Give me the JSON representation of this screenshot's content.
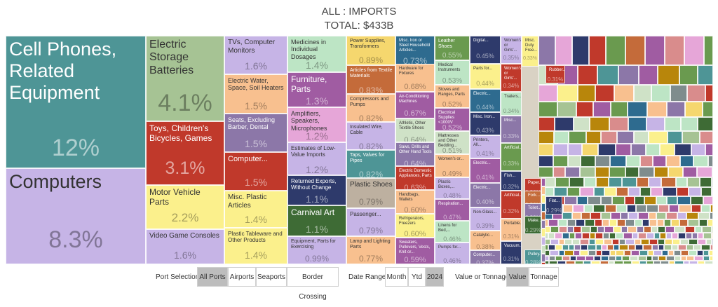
{
  "header": {
    "title": "ALL : IMPORTS",
    "total": "TOTAL: $433B"
  },
  "chart_data": {
    "type": "treemap",
    "title": "ALL : IMPORTS",
    "subtitle": "TOTAL: $433B",
    "unit": "percent of total import value",
    "items": [
      {
        "label": "Cell Phones, Related Equipment",
        "value": 12,
        "display": "12%",
        "color": "#4e9596",
        "text": "#ffffff"
      },
      {
        "label": "Computers",
        "value": 8.3,
        "display": "8.3%",
        "color": "#c6b4e6",
        "text": "#333333"
      },
      {
        "label": "Electric Storage Batteries",
        "value": 4.1,
        "display": "4.1%",
        "color": "#a6c394",
        "text": "#333333"
      },
      {
        "label": "Toys, Children's Bicycles, Games",
        "value": 3.1,
        "display": "3.1%",
        "color": "#c0392b",
        "text": "#ffffff"
      },
      {
        "label": "Motor Vehicle Parts",
        "value": 2.2,
        "display": "2.2%",
        "color": "#fbf08c",
        "text": "#333333"
      },
      {
        "label": "Video Game Consoles",
        "value": 1.6,
        "display": "1.6%",
        "color": "#c6b4e6",
        "text": "#333333"
      },
      {
        "label": "TVs, Computer Monitors",
        "value": 1.6,
        "display": "1.6%",
        "color": "#c6b4e6",
        "text": "#333333"
      },
      {
        "label": "Electric Water, Space, Soil Heaters",
        "value": 1.5,
        "display": "1.5%",
        "color": "#f8c08f",
        "text": "#333333"
      },
      {
        "label": "Seats, Excluding Barber, Dental",
        "value": 1.5,
        "display": "1.5%",
        "color": "#8c77a8",
        "text": "#ffffff"
      },
      {
        "label": "Computer...",
        "value": 1.5,
        "display": "1.5%",
        "color": "#c0392b",
        "text": "#ffffff"
      },
      {
        "label": "Misc. Plastic Articles",
        "value": 1.4,
        "display": "1.4%",
        "color": "#fbf08c",
        "text": "#333333"
      },
      {
        "label": "Plastic Tableware and Other Products",
        "value": 1.4,
        "display": "1.4%",
        "color": "#fbf08c",
        "text": "#333333"
      },
      {
        "label": "Medicines in Individual Dosages",
        "value": 1.4,
        "display": "1.4%",
        "color": "#bde5c5",
        "text": "#333333"
      },
      {
        "label": "Furniture, Parts",
        "value": 1.3,
        "display": "1.3%",
        "color": "#a05ca2",
        "text": "#ffffff"
      },
      {
        "label": "Amplifiers, Speakers, Microphones",
        "value": 1.2,
        "display": "1.2%",
        "color": "#e6a6d8",
        "text": "#333333"
      },
      {
        "label": "Estimates of Low-Value Imports",
        "value": 1.2,
        "display": "1.2%",
        "color": "#c6b4e6",
        "text": "#333333"
      },
      {
        "label": "Returned Exports, Without Change",
        "value": 1.1,
        "display": "1.1%",
        "color": "#2e3a6b",
        "text": "#ffffff"
      },
      {
        "label": "Carnival Art",
        "value": 1.1,
        "display": "1.1%",
        "color": "#3e6b35",
        "text": "#ffffff"
      },
      {
        "label": "Equipment, Parts for Exercising",
        "value": 0.99,
        "display": "0.99%",
        "color": "#c6b4e6",
        "text": "#333333"
      },
      {
        "label": "Power Supplies, Transformers",
        "value": 0.89,
        "display": "0.89%",
        "color": "#f5d76e",
        "text": "#333333"
      },
      {
        "label": "Articles from Textile Materials",
        "value": 0.83,
        "display": "0.83%",
        "color": "#c46b3a",
        "text": "#ffffff"
      },
      {
        "label": "Compressors and Pumps",
        "value": 0.82,
        "display": "0.82%",
        "color": "#f8c08f",
        "text": "#333333"
      },
      {
        "label": "Insulated Wire, Cable",
        "value": 0.82,
        "display": "0.82%",
        "color": "#c6b4e6",
        "text": "#333333"
      },
      {
        "label": "Taps, Valves for Pipes",
        "value": 0.82,
        "display": "0.82%",
        "color": "#4e9596",
        "text": "#ffffff"
      },
      {
        "label": "Plastic Shoes",
        "value": 0.79,
        "display": "0.79%",
        "color": "#bdb0a0",
        "text": "#333333"
      },
      {
        "label": "Passenger...",
        "value": 0.79,
        "display": "0.79%",
        "color": "#c6b4e6",
        "text": "#333333"
      },
      {
        "label": "Lamp and Lighting Parts",
        "value": 0.77,
        "display": "0.77%",
        "color": "#f8c08f",
        "text": "#333333"
      },
      {
        "label": "Misc. Iron or Steel Household Articles...",
        "value": 0.73,
        "display": "0.73%",
        "color": "#2e6b8f",
        "text": "#ffffff"
      },
      {
        "label": "Hardware for Fixtures",
        "value": 0.68,
        "display": "0.68%",
        "color": "#f8c08f",
        "text": "#333333"
      },
      {
        "label": "Air-Conditioning Machines",
        "value": 0.67,
        "display": "0.67%",
        "color": "#a05ca2",
        "text": "#ffffff"
      },
      {
        "label": "Athletic, Other Textile Shoes",
        "value": 0.64,
        "display": "0.64%",
        "color": "#cfe2c7",
        "text": "#333333"
      },
      {
        "label": "Saws, Drills and Other Hand Tools",
        "value": 0.64,
        "display": "0.64%",
        "color": "#8c77a8",
        "text": "#ffffff"
      },
      {
        "label": "Electric Domestic Appliances, Parts",
        "value": 0.63,
        "display": "0.63%",
        "color": "#c0392b",
        "text": "#ffffff"
      },
      {
        "label": "Handbags, Wallets",
        "value": 0.6,
        "display": "0.60%",
        "color": "#f8c08f",
        "text": "#333333"
      },
      {
        "label": "Refrigerators, Freezers",
        "value": 0.6,
        "display": "0.60%",
        "color": "#fbf08c",
        "text": "#333333"
      },
      {
        "label": "Sweaters, Pullovers, Vests, Knit or...",
        "value": 0.59,
        "display": "0.59%",
        "color": "#a05ca2",
        "text": "#ffffff"
      },
      {
        "label": "Leather Shoes",
        "value": 0.55,
        "display": "0.55%",
        "color": "#6a9a4f",
        "text": "#ffffff"
      },
      {
        "label": "Medical Instruments",
        "value": 0.53,
        "display": "0.53%",
        "color": "#bde5c5",
        "text": "#333333"
      },
      {
        "label": "Stoves and Ranges, Parts",
        "value": 0.52,
        "display": "0.52%",
        "color": "#f8c08f",
        "text": "#333333"
      },
      {
        "label": "Electrical Supplies <1000V",
        "value": 0.52,
        "display": "0.52%",
        "color": "#a05ca2",
        "text": "#ffffff"
      },
      {
        "label": "Mattresses and Other Bedding...",
        "value": 0.51,
        "display": "0.51%",
        "color": "#cfe2c7",
        "text": "#333333"
      },
      {
        "label": "Women's or...",
        "value": 0.49,
        "display": "0.49%",
        "color": "#f8c08f",
        "text": "#333333"
      },
      {
        "label": "Plastic Boxes,...",
        "value": 0.48,
        "display": "0.48%",
        "color": "#c6b4e6",
        "text": "#333333"
      },
      {
        "label": "Respiration...",
        "value": 0.47,
        "display": "0.47%",
        "color": "#a05ca2",
        "text": "#ffffff"
      },
      {
        "label": "Linens for Bed,...",
        "value": 0.46,
        "display": "0.46%",
        "color": "#bde5c5",
        "text": "#333333"
      },
      {
        "label": "Pumps for...",
        "value": 0.46,
        "display": "0.46%",
        "color": "#c6b4e6",
        "text": "#333333"
      },
      {
        "label": "Digital...",
        "value": 0.45,
        "display": "0.45%",
        "color": "#2e3a6b",
        "text": "#ffffff"
      },
      {
        "label": "Parts for...",
        "value": 0.44,
        "display": "0.44%",
        "color": "#fbf08c",
        "text": "#333333"
      },
      {
        "label": "Electric...",
        "value": 0.44,
        "display": "0.44%",
        "color": "#2e6b8f",
        "text": "#ffffff"
      },
      {
        "label": "Misc. Iron...",
        "value": 0.43,
        "display": "0.43%",
        "color": "#2e3a6b",
        "text": "#ffffff"
      },
      {
        "label": "Printers, All...",
        "value": 0.41,
        "display": "0.41%",
        "color": "#c6b4e6",
        "text": "#333333"
      },
      {
        "label": "Electric...",
        "value": 0.41,
        "display": "0.41%",
        "color": "#a05ca2",
        "text": "#ffffff"
      },
      {
        "label": "Electric...",
        "value": 0.4,
        "display": "0.40%",
        "color": "#8c77a8",
        "text": "#ffffff"
      },
      {
        "label": "Non-Glass...",
        "value": 0.39,
        "display": "0.39%",
        "color": "#c6b4e6",
        "text": "#333333"
      },
      {
        "label": "Catalytic...",
        "value": 0.38,
        "display": "0.38%",
        "color": "#f8c08f",
        "text": "#333333"
      },
      {
        "label": "Computer...",
        "value": 0.37,
        "display": "0.37%",
        "color": "#8c77a8",
        "text": "#ffffff"
      },
      {
        "label": "Women's or Girls'...",
        "value": 0.35,
        "display": "0.35%",
        "color": "#c6b4e6",
        "text": "#333333"
      },
      {
        "label": "Women's or Girls'...",
        "value": 0.34,
        "display": "0.34%",
        "color": "#c0392b",
        "text": "#ffffff"
      },
      {
        "label": "Trailers...",
        "value": 0.34,
        "display": "0.34%",
        "color": "#bde5c5",
        "text": "#333333"
      },
      {
        "label": "Misc...",
        "value": 0.33,
        "display": "0.33%",
        "color": "#8c77a8",
        "text": "#ffffff"
      },
      {
        "label": "Artificial...",
        "value": 0.33,
        "display": "0.33%",
        "color": "#6a9a4f",
        "text": "#ffffff"
      },
      {
        "label": "Fish...",
        "value": 0.32,
        "display": "0.32%",
        "color": "#2e3a6b",
        "text": "#ffffff"
      },
      {
        "label": "Artificial...",
        "value": 0.32,
        "display": "0.32%",
        "color": "#c0392b",
        "text": "#ffffff"
      },
      {
        "label": "Portable...",
        "value": 0.31,
        "display": "0.31%",
        "color": "#f8c08f",
        "text": "#333333"
      },
      {
        "label": "Vacuum...",
        "value": 0.31,
        "display": "0.31%",
        "color": "#2e3a6b",
        "text": "#ffffff"
      },
      {
        "label": "Misc. Duty Free...",
        "value": 0.33,
        "display": "0.33%",
        "color": "#fbf08c",
        "text": "#333333"
      },
      {
        "label": "Rubber...",
        "value": 0.31,
        "display": "0.31%",
        "color": "#c0392b",
        "text": "#ffffff"
      },
      {
        "label": "Paper...",
        "value": 0.3,
        "display": "0.30%",
        "color": "#c0392b",
        "text": "#ffffff"
      },
      {
        "label": "Fork...",
        "value": 0.3,
        "display": "0.30%",
        "color": "#c46b3a",
        "text": "#ffffff"
      },
      {
        "label": "Toilet...",
        "value": 0.29,
        "display": "0.29%",
        "color": "#8c77a8",
        "text": "#ffffff"
      },
      {
        "label": "Flat...",
        "value": 0.29,
        "display": "0.29%",
        "color": "#2e3a6b",
        "text": "#ffffff"
      },
      {
        "label": "Make...",
        "value": 0.29,
        "display": "0.29%",
        "color": "#3e6b35",
        "text": "#ffffff"
      },
      {
        "label": "Pulley...",
        "value": 0.28,
        "display": "0.28%",
        "color": "#4e9596",
        "text": "#ffffff"
      }
    ]
  },
  "controls": {
    "port_label": "Port Selection",
    "port_options": [
      "All Ports",
      "Airports",
      "Seaports",
      "Border Crossing"
    ],
    "port_selected": "All Ports",
    "date_label": "Date Range",
    "date_options": [
      "Month",
      "Ytd",
      "2024"
    ],
    "date_selected": "2024",
    "measure_label": "Value or Tonnage",
    "measure_options": [
      "Value",
      "Tonnage"
    ],
    "measure_selected": "Value"
  }
}
